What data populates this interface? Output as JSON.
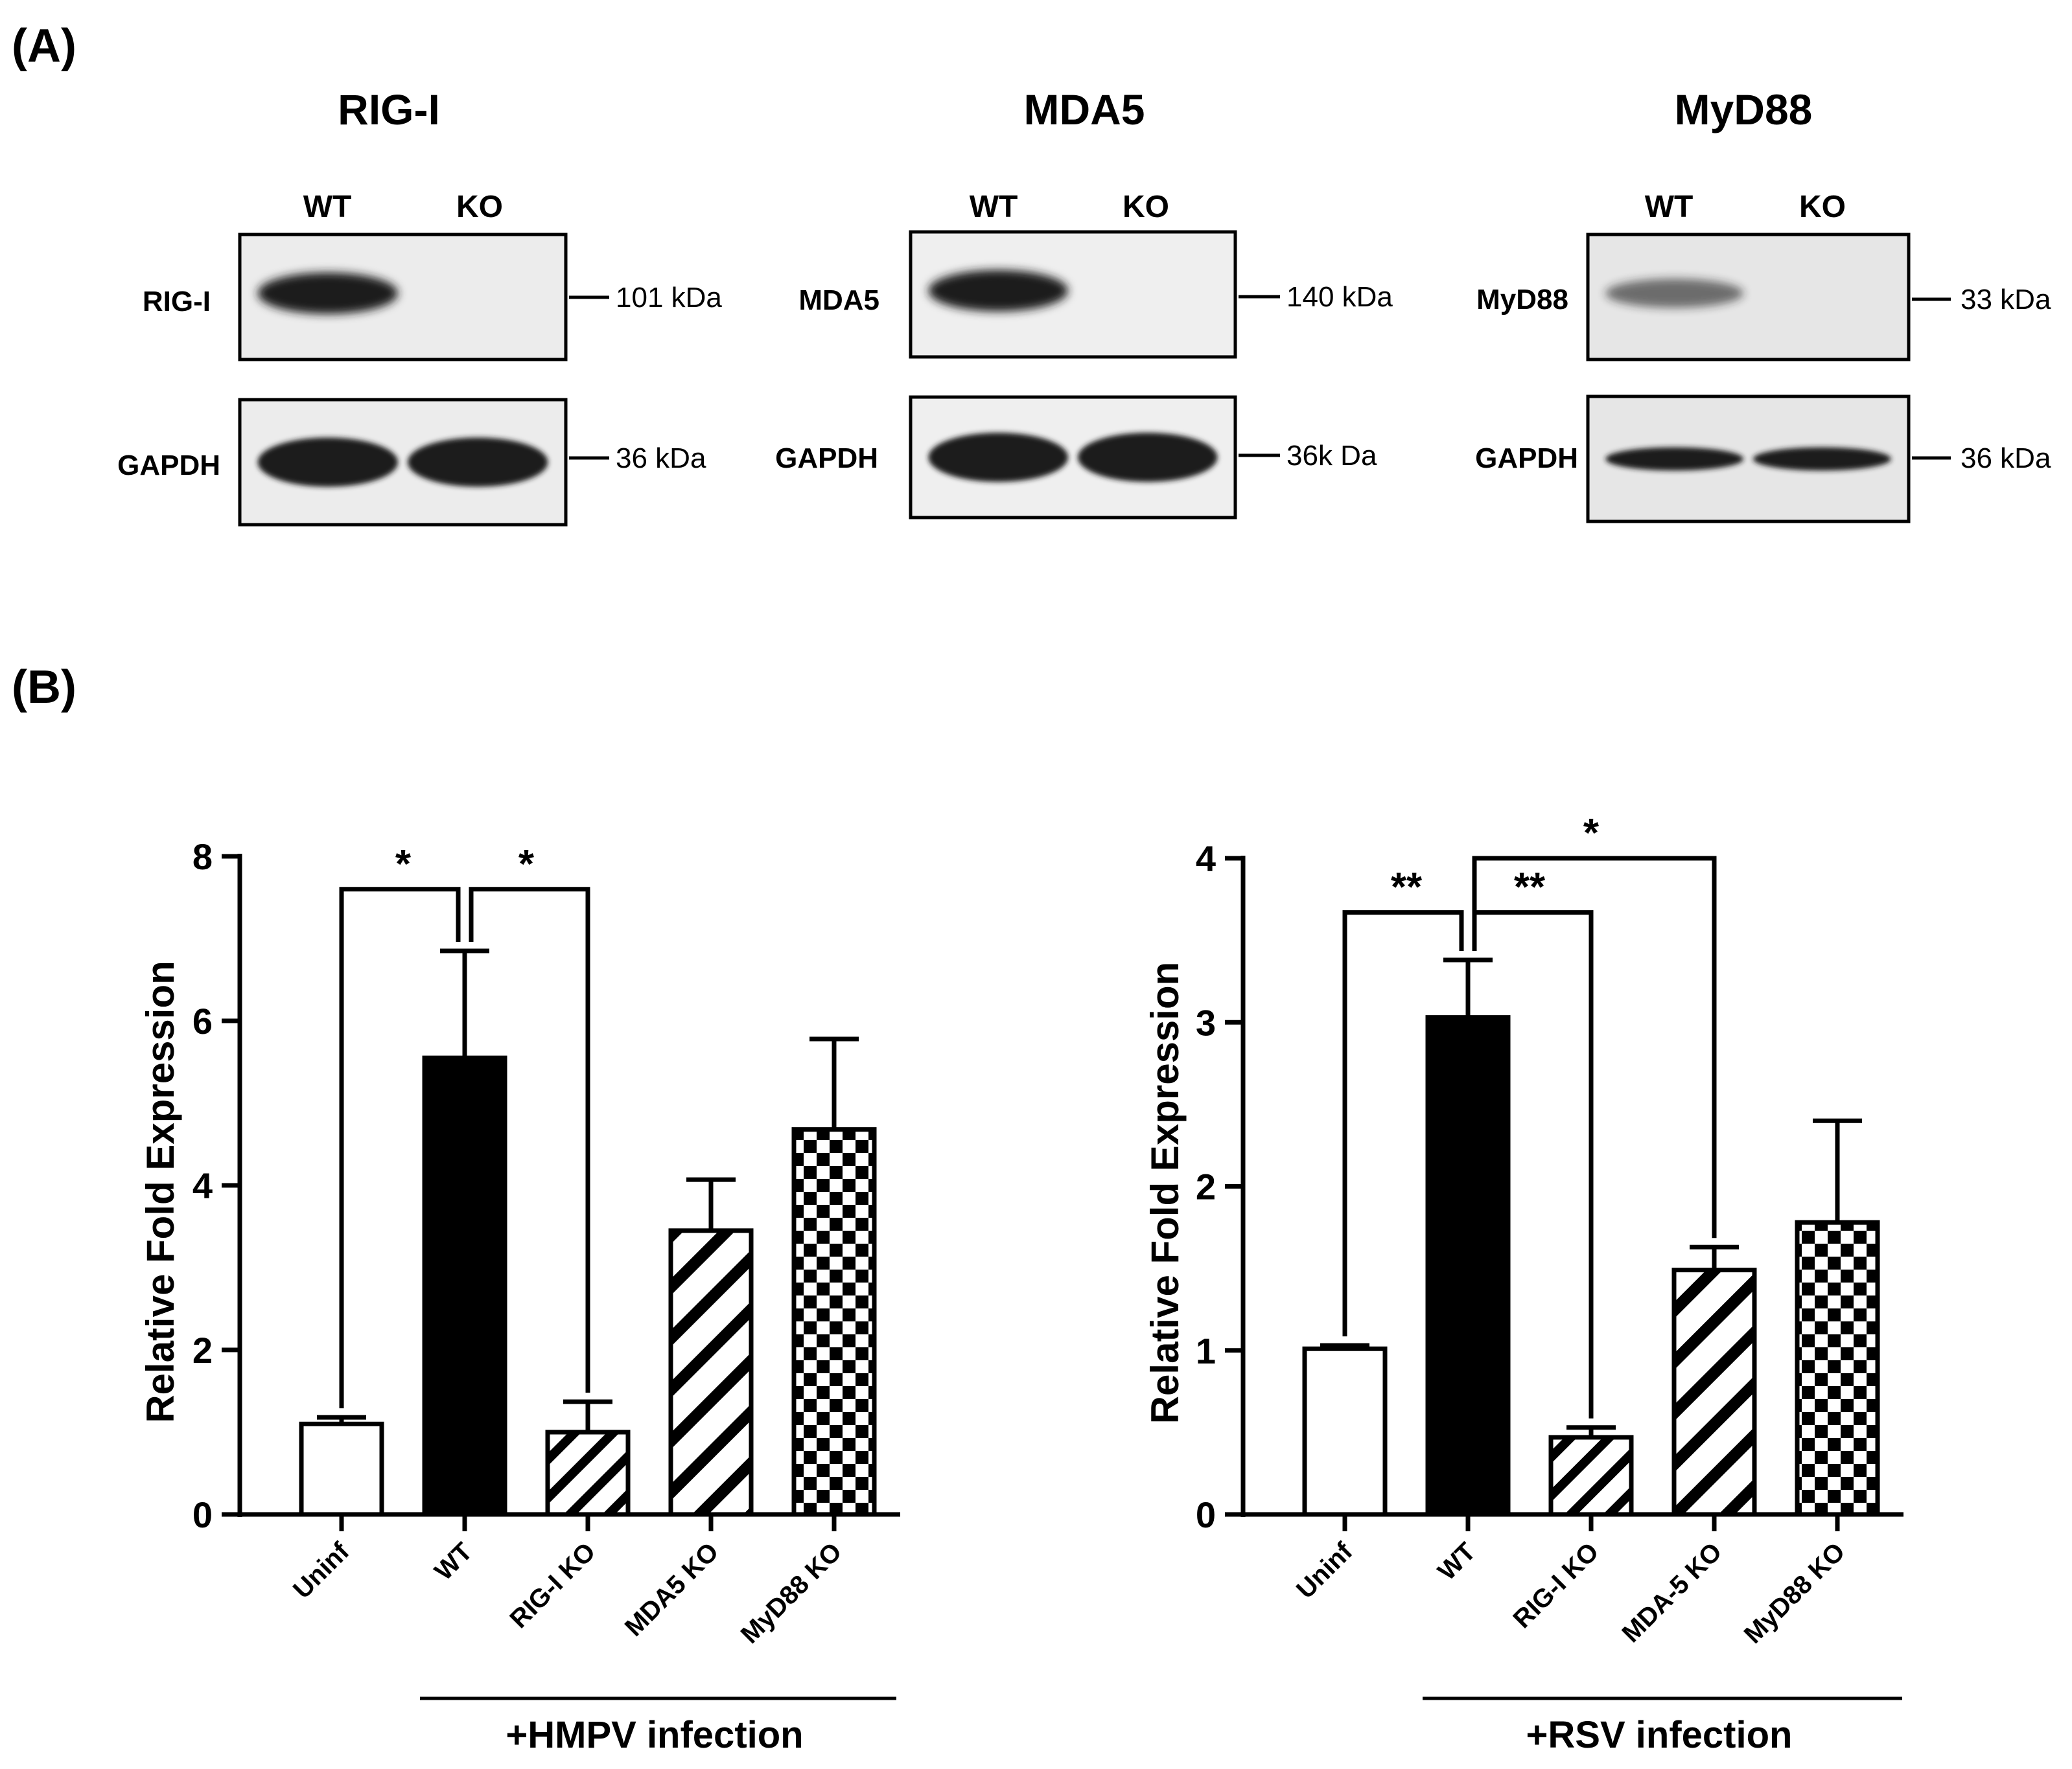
{
  "panels": {
    "a": "(A)",
    "b": "(B)"
  },
  "blots": [
    {
      "title": "RIG-I",
      "lanes": [
        "WT",
        "KO"
      ],
      "target_label": "RIG-I",
      "target_mw": "101 kDa",
      "loading_label": "GAPDH",
      "loading_mw": "36 kDa",
      "target_present": [
        1,
        0
      ]
    },
    {
      "title": "MDA5",
      "lanes": [
        "WT",
        "KO"
      ],
      "target_label": "MDA5",
      "target_mw": "140 kDa",
      "loading_label": "GAPDH",
      "loading_mw": "36k Da",
      "target_present": [
        1,
        0
      ]
    },
    {
      "title": "MyD88",
      "lanes": [
        "WT",
        "KO"
      ],
      "target_label": "MyD88",
      "target_mw": "33 kDa",
      "loading_label": "GAPDH",
      "loading_mw": "36 kDa",
      "target_present": [
        0.6,
        0
      ]
    }
  ],
  "chart_data": [
    {
      "type": "bar",
      "ylabel": "Relative Fold Expression",
      "group_label": "+HMPV infection",
      "categories": [
        "Uninf",
        "WT",
        "RIG-I KO",
        "MDA5 KO",
        "MyD88 KO"
      ],
      "values": [
        1.1,
        5.55,
        1.0,
        3.45,
        4.68
      ],
      "errors": [
        0.08,
        1.3,
        0.37,
        0.62,
        1.1
      ],
      "ylim": [
        0,
        8
      ],
      "yticks": [
        0,
        2,
        4,
        6,
        8
      ],
      "fills": [
        "white",
        "black",
        "hatch-steep",
        "hatch-wide",
        "checker"
      ],
      "significance": [
        {
          "from": 0,
          "to": 1,
          "label": "*",
          "level": 7.6
        },
        {
          "from": 1,
          "to": 2,
          "label": "*",
          "level": 7.6
        }
      ]
    },
    {
      "type": "bar",
      "ylabel": "Relative Fold Expression",
      "group_label": "+RSV infection",
      "categories": [
        "Uninf",
        "WT",
        "RIG-I KO",
        "MDA-5 KO",
        "MyD88 KO"
      ],
      "values": [
        1.01,
        3.03,
        0.47,
        1.49,
        1.78
      ],
      "errors": [
        0.02,
        0.35,
        0.06,
        0.14,
        0.62
      ],
      "ylim": [
        0,
        4
      ],
      "yticks": [
        0,
        1,
        2,
        3,
        4
      ],
      "fills": [
        "white",
        "black",
        "hatch-steep",
        "hatch-wide",
        "checker"
      ],
      "significance": [
        {
          "from": 0,
          "to": 1,
          "label": "**",
          "level": 3.67
        },
        {
          "from": 1,
          "to": 2,
          "label": "**",
          "level": 3.67
        },
        {
          "from": 1,
          "to": 3,
          "label": "*",
          "level": 4.0
        }
      ]
    }
  ]
}
